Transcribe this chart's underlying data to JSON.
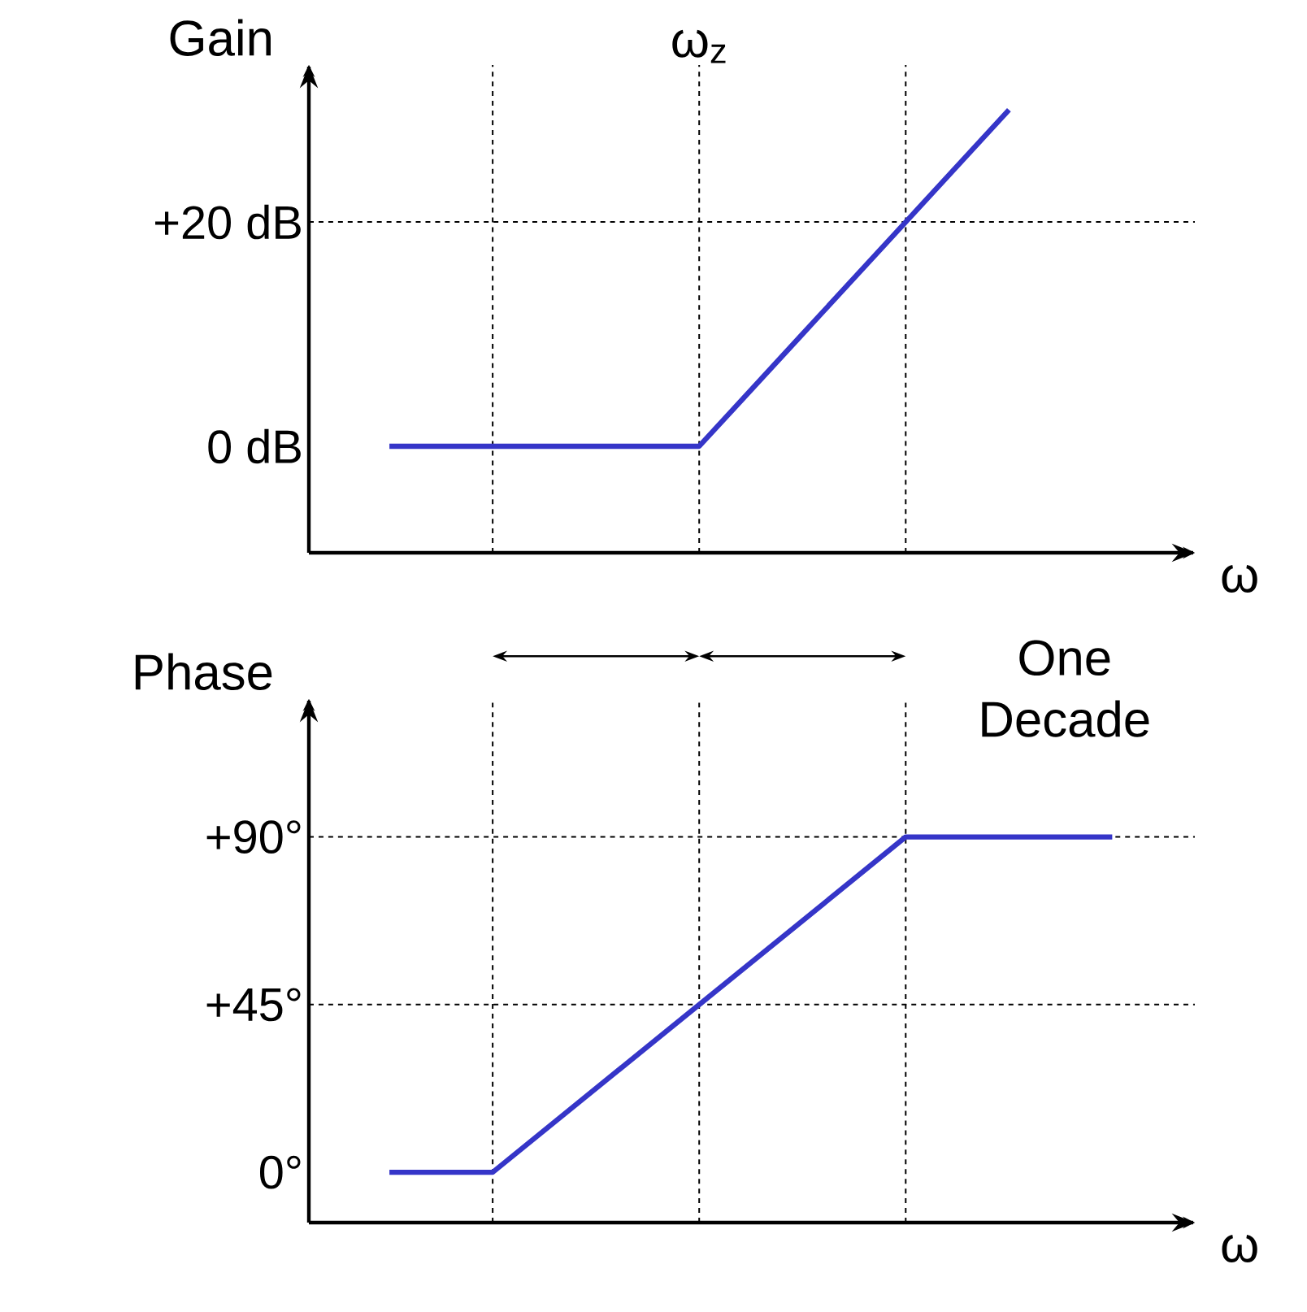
{
  "chart_data": [
    {
      "type": "line",
      "ylabel": "Gain",
      "xlabel": "ω",
      "categories": [
        null,
        null,
        null,
        null,
        null,
        null,
        null,
        null
      ],
      "series": [
        {
          "color": "#3535c8",
          "values": [
            0,
            0,
            0,
            0,
            10,
            20,
            30,
            null
          ]
        }
      ],
      "ylim": [
        -9.5,
        34
      ],
      "yticks": [
        {
          "value": 0,
          "label": "0 dB"
        },
        {
          "value": 20,
          "label": "+20 dB"
        }
      ],
      "tick_labels": "y",
      "grid": "x",
      "ref_lines": [
        {
          "axis": "y",
          "value": 20,
          "line_style": "dashed"
        }
      ],
      "annotations": [
        "ω$_{z}$"
      ]
    },
    {
      "type": "line",
      "ylabel": "Phase",
      "xlabel": "ω",
      "categories": [
        null,
        null,
        null,
        null,
        null,
        null,
        null,
        null
      ],
      "series": [
        {
          "color": "#3535c8",
          "values": [
            0,
            0,
            22.5,
            45,
            67.5,
            90,
            90,
            90
          ]
        }
      ],
      "ylim": [
        -13.5,
        127
      ],
      "yticks": [
        {
          "value": 0,
          "label": "0°"
        },
        {
          "value": 45,
          "label": "+45°"
        },
        {
          "value": 90,
          "label": "+90°"
        }
      ],
      "tick_labels": "y",
      "grid": "x",
      "ref_lines": [
        {
          "axis": "y",
          "value": 45,
          "line_style": "dashed"
        },
        {
          "axis": "y",
          "value": 90,
          "line_style": "dashed"
        }
      ],
      "annotations": [
        "One Decade"
      ]
    }
  ]
}
